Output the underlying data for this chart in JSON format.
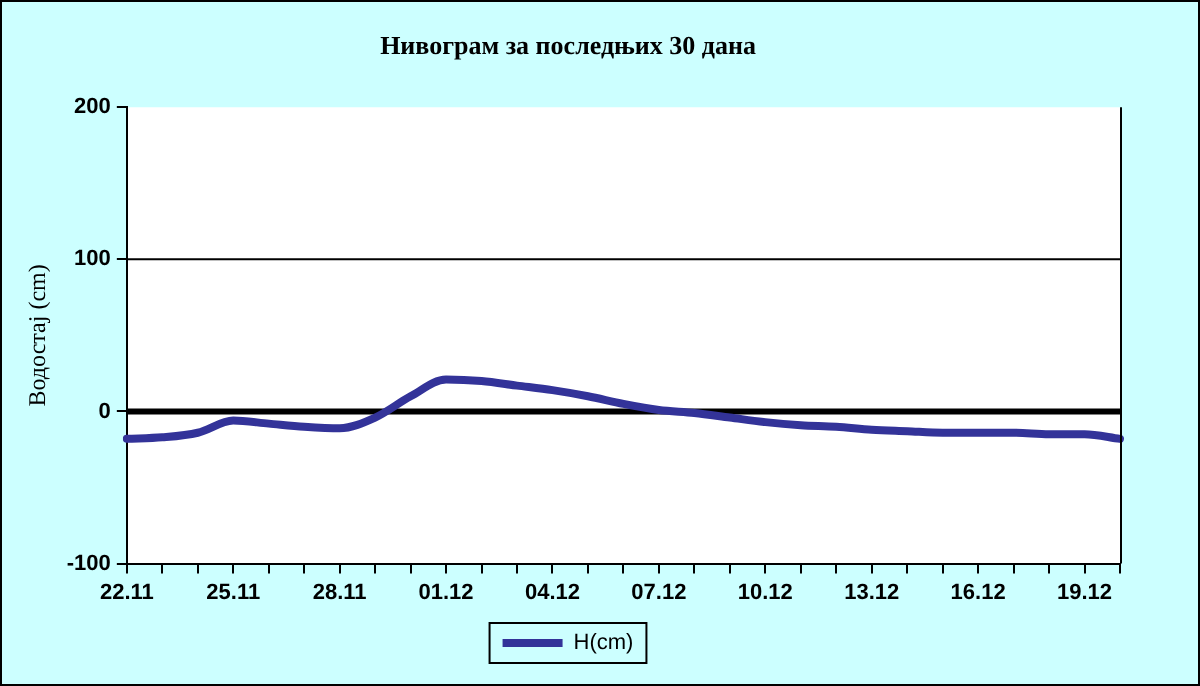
{
  "chart_data": {
    "type": "line",
    "title": "Нивограм за последњих 30 дана",
    "ylabel": "Водостај (cm)",
    "categories": [
      "22.11",
      null,
      null,
      "25.11",
      null,
      null,
      "28.11",
      null,
      null,
      "01.12",
      null,
      null,
      "04.12",
      null,
      null,
      "07.12",
      null,
      null,
      "10.12",
      null,
      null,
      "13.12",
      null,
      null,
      "16.12",
      null,
      null,
      "19.12",
      null
    ],
    "series": [
      {
        "name": "H(cm)",
        "color": "#333399",
        "values": [
          -18,
          -17,
          -14,
          -6,
          -8,
          -10,
          -11,
          -4,
          10,
          21,
          20,
          17,
          14,
          10,
          5,
          1,
          -1,
          -4,
          -7,
          -9,
          -10,
          -12,
          -13,
          -14,
          -14,
          -14,
          -15,
          -15,
          -18
        ]
      }
    ],
    "ylim": [
      -100,
      200
    ],
    "yticks": [
      -100,
      0,
      100,
      200
    ],
    "legend": "bottom",
    "marker": "none",
    "line_style": "solid",
    "ref_lines": [
      {
        "axis": "y",
        "value": 0,
        "color": "#000000"
      },
      {
        "axis": "y",
        "value": 100,
        "color": "#000000"
      }
    ]
  }
}
